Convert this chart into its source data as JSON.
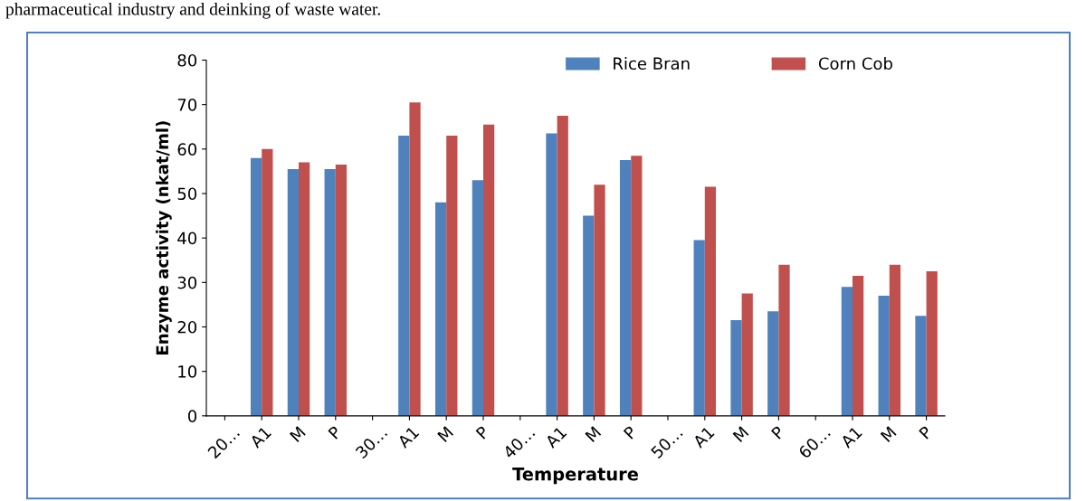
{
  "chart_data": {
    "type": "bar",
    "xlabel": "Temperature",
    "ylabel": "Enzyme activity (nkat/ml)",
    "categories": [
      "20…",
      "A1",
      "M",
      "P",
      "30…",
      "A1",
      "M",
      "P",
      "40…",
      "A1",
      "M",
      "P",
      "50…",
      "A1",
      "M",
      "P",
      "60…",
      "A1",
      "M",
      "P"
    ],
    "series": [
      {
        "name": "Rice Bran",
        "color": "#4f81bd",
        "values": [
          null,
          58,
          55.5,
          55.5,
          null,
          63,
          48,
          53,
          null,
          63.5,
          45,
          57.5,
          null,
          39.5,
          21.5,
          23.5,
          null,
          29,
          27,
          22.5
        ]
      },
      {
        "name": "Corn Cob",
        "color": "#c0504d",
        "values": [
          null,
          60,
          57,
          56.5,
          null,
          70.5,
          63,
          65.5,
          null,
          67.5,
          52,
          58.5,
          null,
          51.5,
          27.5,
          34,
          null,
          31.5,
          34,
          32.5
        ]
      }
    ],
    "ylim": [
      0,
      80
    ],
    "yticks": [
      0,
      10,
      20,
      30,
      40,
      50,
      60,
      70,
      80
    ],
    "grid": false,
    "legend": "top right",
    "annotations": [
      "pharmaceutical industry and deinking of waste water."
    ]
  }
}
